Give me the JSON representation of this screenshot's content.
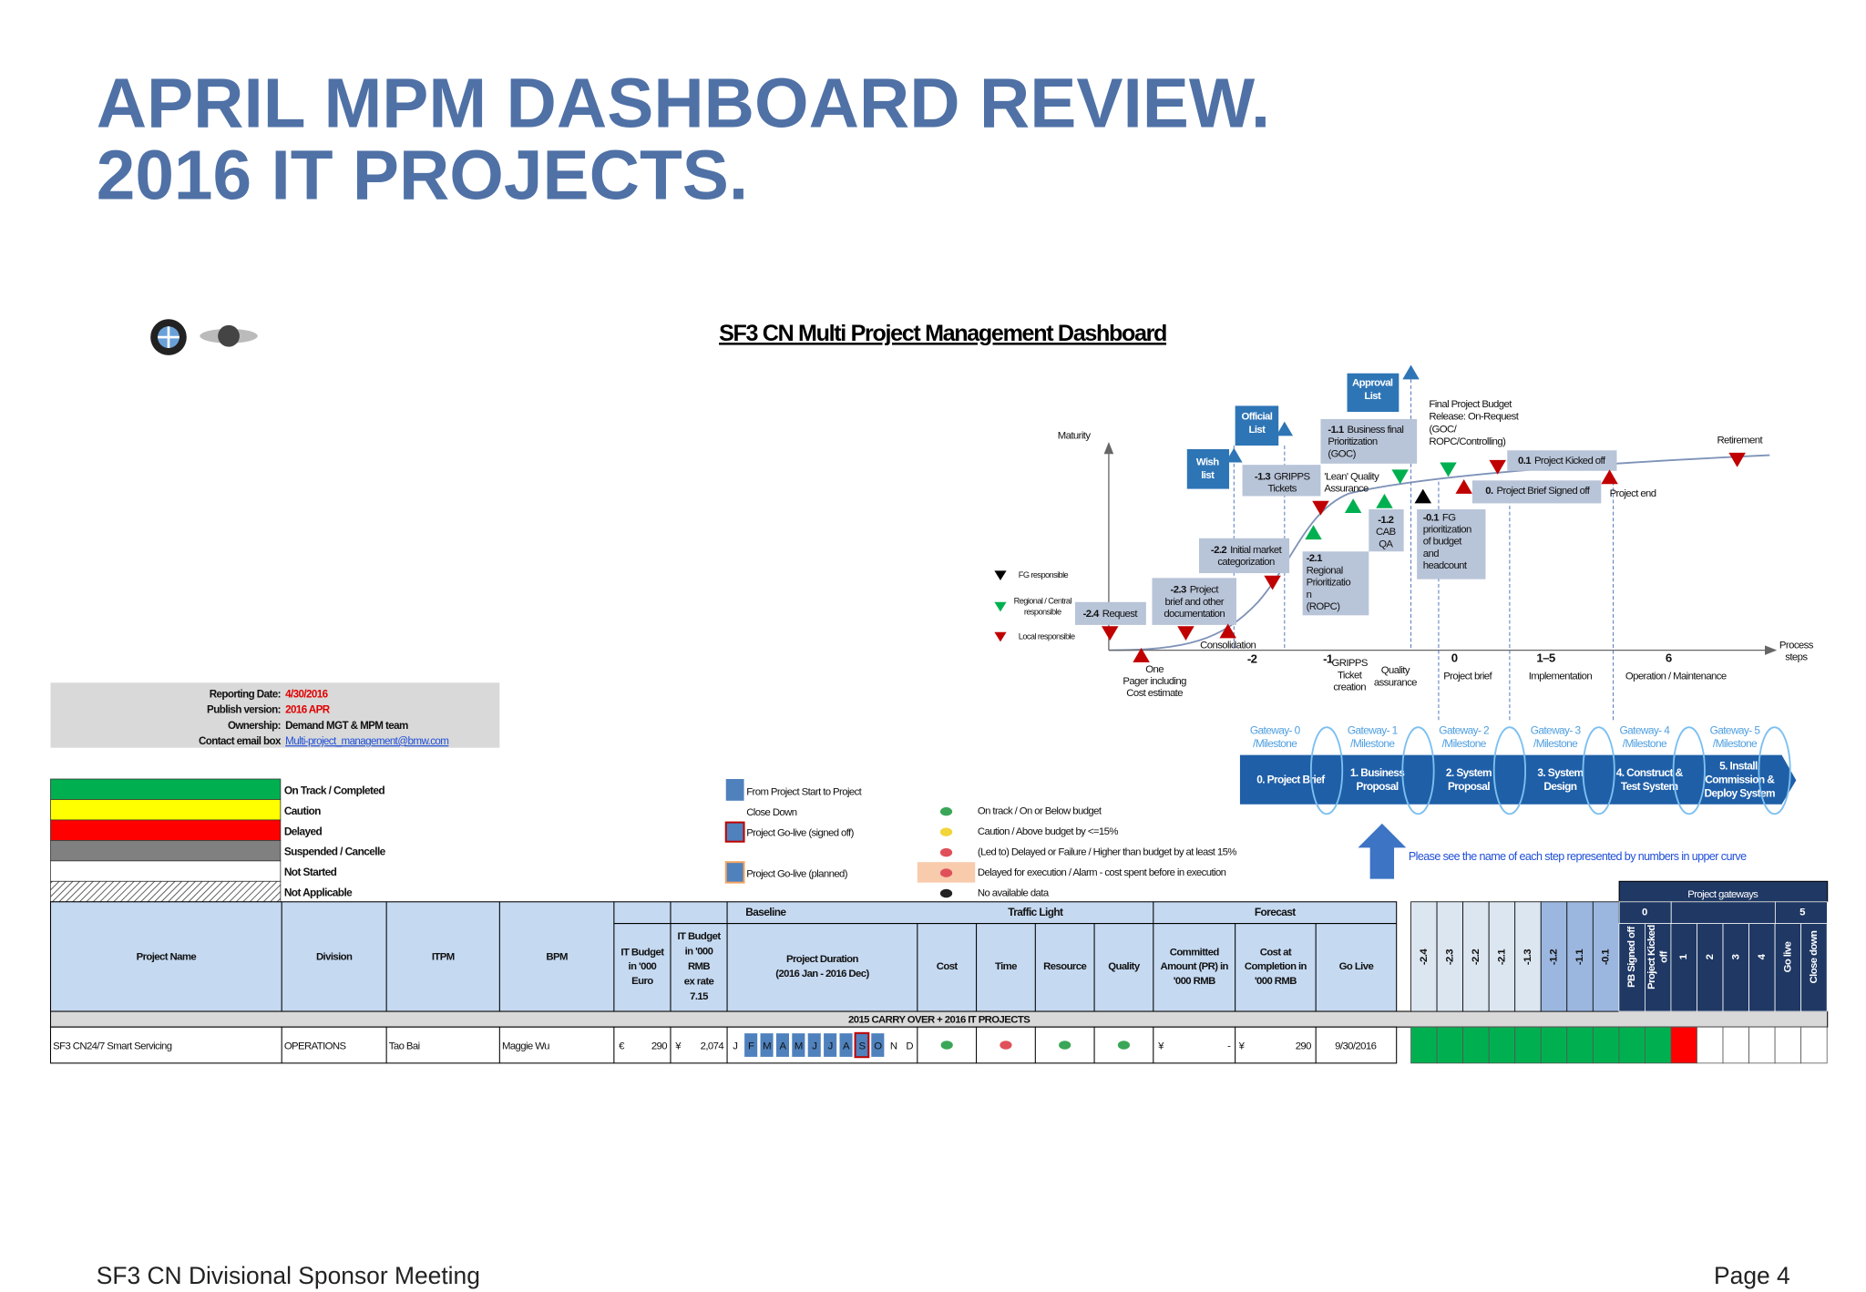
{
  "header": {
    "title_lines": [
      "APRIL MPM DASHBOARD REVIEW.",
      "2016 IT PROJECTS."
    ]
  },
  "footer": {
    "left": "SF3 CN Divisional Sponsor Meeting",
    "right": "Page 4"
  },
  "dashboard_title": "SF3 CN Multi Project Management Dashboard",
  "report_info": [
    {
      "label": "Reporting Date:",
      "value": "4/30/2016"
    },
    {
      "label": "Publish version:",
      "value": "2016 APR"
    },
    {
      "label": "Ownership:",
      "value": "Demand MGT & MPM team"
    },
    {
      "label": "Contact email box",
      "value": "Multi-project_management@bmw.com"
    }
  ],
  "status_legend": [
    {
      "text": "On Track / Completed",
      "color": "#00b050"
    },
    {
      "text": "Caution",
      "color": "#ffff00"
    },
    {
      "text": "Delayed",
      "color": "#ff0000"
    },
    {
      "text": "Suspended / Cancelle",
      "color": "#808080"
    },
    {
      "text": "Not Started",
      "color": "#ffffff"
    },
    {
      "text": "Not Applicable",
      "color": "hatch"
    }
  ],
  "timeline_legend": [
    "From Project Start to Project",
    "Close Down",
    "Project Go-live (signed off)",
    "Project Go-live (planned)"
  ],
  "traffic_legend": [
    {
      "text": "On track / On or Below budget",
      "color": "#3aa657"
    },
    {
      "text": "Caution / Above budget by <=15%",
      "color": "#f2d43b"
    },
    {
      "text": "(Led to) Delayed or Failure / Higher than budget by at least 15%",
      "color": "#e0505a"
    },
    {
      "text": "Delayed for execution / Alarm - cost spent before in execution",
      "color": "#e0505a"
    },
    {
      "text": "No available data",
      "color": "#222222"
    }
  ],
  "process_chart": {
    "axis_y": "Maturity",
    "axis_x": [
      "Process",
      "steps"
    ],
    "phase_numbers": [
      "-2",
      "-1",
      "0",
      "1–5",
      "6"
    ],
    "phase_labels": [
      [
        "One",
        "Pager including",
        "Cost estimate"
      ],
      [
        "Consolidation"
      ],
      [
        "GRIPPS",
        "Ticket",
        "creation"
      ],
      [
        "Quality",
        "assurance"
      ],
      [
        "Project brief"
      ],
      [
        "Implementation"
      ],
      [
        "Operation / Maintenance"
      ]
    ],
    "steps": [
      {
        "code": "-2.4",
        "lines": [
          "Request"
        ]
      },
      {
        "code": "-2.3",
        "lines": [
          "Project",
          "brief and other",
          "documentation"
        ]
      },
      {
        "code": "-2.2",
        "lines": [
          "Initial market",
          "categorization"
        ]
      },
      {
        "code": "-2.1",
        "lines": [
          "Regional",
          "Prioritizatio",
          "n",
          "(ROPC)"
        ]
      },
      {
        "code": "-1.3",
        "lines": [
          "GRIPPS",
          "Tickets"
        ]
      },
      {
        "code": "-1.2",
        "lines": [
          "CAB",
          "QA"
        ]
      },
      {
        "code": "-1.1",
        "lines": [
          "Business final",
          "Prioritization",
          "(GOC)"
        ]
      },
      {
        "code": "-0.1",
        "lines": [
          "FG",
          "prioritization",
          "of budget",
          "and",
          "headcount"
        ]
      },
      {
        "code": "0.",
        "lines": [
          "Project Brief Signed off"
        ]
      },
      {
        "code": "0.1",
        "lines": [
          "Project Kicked off"
        ]
      }
    ],
    "lists": [
      [
        "Wish",
        "list"
      ],
      [
        "Official",
        "List"
      ],
      [
        "Approval",
        "List"
      ]
    ],
    "notes": [
      [
        "'Lean' Quality",
        "Assurance"
      ],
      [
        "Final Project Budget",
        "Release: On-Request",
        "(GOC/",
        "ROPC/Controlling)"
      ],
      [
        "Project end"
      ],
      [
        "Retirement"
      ]
    ],
    "responsibility_legend": [
      [
        "FG responsible"
      ],
      [
        "Regional / Central",
        "responsible"
      ],
      [
        "Local responsible"
      ]
    ]
  },
  "gateways": [
    {
      "label": [
        "Gateway- 0",
        "/Milestone"
      ],
      "step": [
        "0. Project Brief"
      ]
    },
    {
      "label": [
        "Gateway- 1",
        "/Milestone"
      ],
      "step": [
        "1. Business",
        "Proposal"
      ]
    },
    {
      "label": [
        "Gateway- 2",
        "/Milestone"
      ],
      "step": [
        "2. System",
        "Proposal"
      ]
    },
    {
      "label": [
        "Gateway- 3",
        "/Milestone"
      ],
      "step": [
        "3. System",
        "Design"
      ]
    },
    {
      "label": [
        "Gateway- 4",
        "/Milestone"
      ],
      "step": [
        "4. Construct &",
        "Test System"
      ]
    },
    {
      "label": [
        "Gateway- 5",
        "/Milestone"
      ],
      "step": [
        "5. Install,",
        "Commission &",
        "Deploy System"
      ]
    }
  ],
  "gateway_note": "Please see the name of each step represented by numbers in upper curve",
  "table": {
    "group_headers": [
      "Baseline",
      "Traffic Light",
      "Forecast"
    ],
    "columns": [
      [
        "Project Name"
      ],
      [
        "Division"
      ],
      [
        "ITPM"
      ],
      [
        "BPM"
      ],
      [
        "IT Budget",
        "in '000",
        "Euro"
      ],
      [
        "IT Budget",
        "in '000",
        "RMB",
        "ex rate",
        "7.15"
      ],
      [
        "Project Duration",
        "(2016 Jan - 2016 Dec)"
      ],
      [
        "Cost"
      ],
      [
        "Time"
      ],
      [
        "Resource"
      ],
      [
        "Quality"
      ],
      [
        "Committed",
        "Amount (PR) in",
        "'000 RMB"
      ],
      [
        "Cost at",
        "Completion in",
        "'000 RMB"
      ],
      [
        "Go Live"
      ]
    ],
    "section": "2015 CARRY OVER + 2016 IT PROJECTS",
    "gateway_header": "Project gateways",
    "gateway_groups": [
      "0",
      "5"
    ],
    "gateway_columns": [
      [
        "-2.4"
      ],
      [
        "-2.3"
      ],
      [
        "-2.2"
      ],
      [
        "-2.1"
      ],
      [
        "-1.3"
      ],
      [
        "-1.2"
      ],
      [
        "-1.1"
      ],
      [
        "-0.1"
      ],
      [
        "PB Signed off"
      ],
      [
        "Project Kicked",
        "off"
      ],
      [
        "1"
      ],
      [
        "2"
      ],
      [
        "3"
      ],
      [
        "4"
      ],
      [
        "Go live"
      ],
      [
        "Close down"
      ]
    ],
    "rows": [
      {
        "project": "SF3 CN24/7 Smart Servicing",
        "division": "OPERATIONS",
        "itpm": "Tao Bai",
        "bpm": "Maggie Wu",
        "budget_eur": [
          "€",
          "290"
        ],
        "budget_rmb": [
          "¥",
          "2,074"
        ],
        "months": [
          "J",
          "F",
          "M",
          "A",
          "M",
          "J",
          "J",
          "A",
          "S",
          "O",
          "N",
          "D"
        ],
        "month_fill": [
          null,
          "#4f81bd",
          "#4f81bd",
          "#4f81bd",
          "#4f81bd",
          "#4f81bd",
          "#4f81bd",
          "#4f81bd",
          "#4f81bd",
          "#4f81bd",
          null,
          null
        ],
        "month_outline": [
          null,
          null,
          null,
          null,
          null,
          null,
          null,
          null,
          "#c00000",
          null,
          null,
          null
        ],
        "traffic_colors": [
          "#3aa657",
          "#e0505a",
          "#3aa657",
          "#3aa657"
        ],
        "committed": [
          "¥",
          "-"
        ],
        "cost_at_completion": [
          "¥",
          "290"
        ],
        "go_live": "9/30/2016",
        "gateway_status": [
          "#00b050",
          "#00b050",
          "#00b050",
          "#00b050",
          "#00b050",
          "#00b050",
          "#00b050",
          "#00b050",
          "#00b050",
          "#00b050",
          "#ff0000",
          "#ffffff",
          "#ffffff",
          "#ffffff",
          "#ffffff",
          "#ffffff"
        ]
      }
    ]
  }
}
